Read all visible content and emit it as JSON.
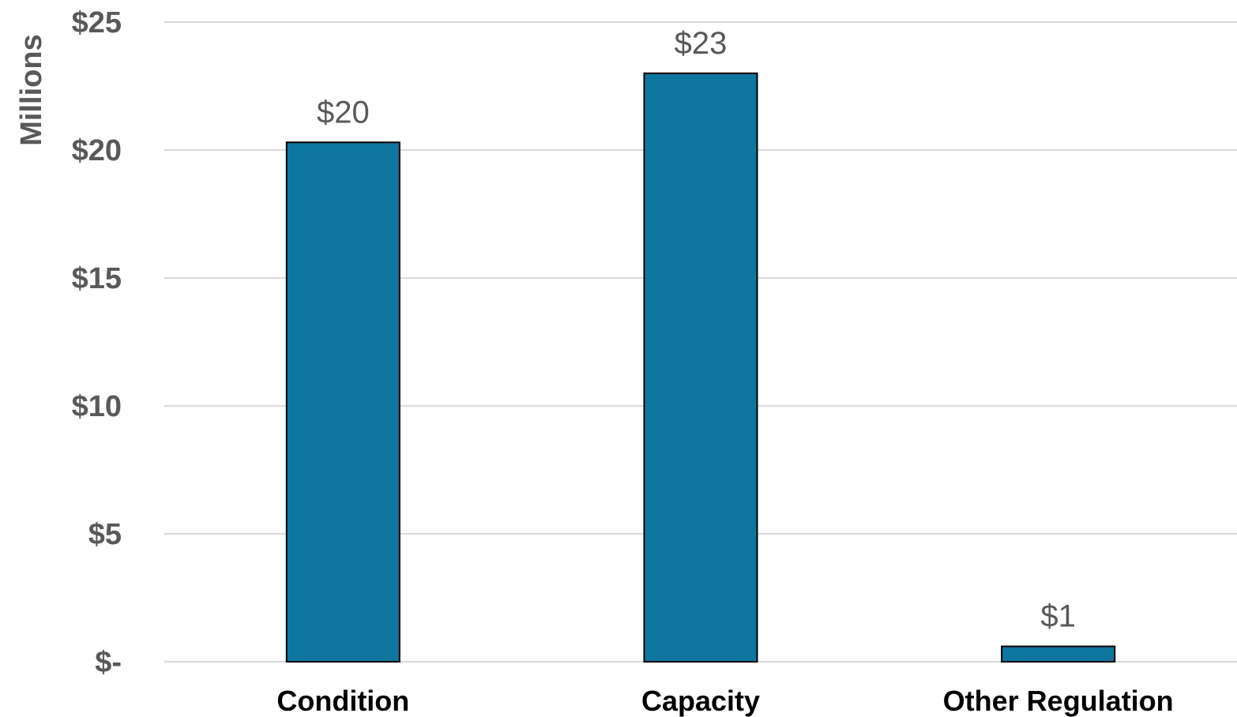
{
  "chart_data": {
    "type": "bar",
    "title": "",
    "xlabel": "",
    "ylabel": "Millions",
    "categories": [
      "Condition",
      "Capacity",
      "Other Regulation"
    ],
    "values": [
      20.3,
      23.0,
      0.6
    ],
    "data_labels": [
      "$20",
      "$23",
      "$1"
    ],
    "ylim": [
      0,
      25
    ],
    "yticks": [
      0,
      5,
      10,
      15,
      20,
      25
    ],
    "ytick_labels": [
      "$-",
      "$5",
      "$10",
      "$15",
      "$20",
      "$25"
    ],
    "grid": true,
    "legend": "none",
    "colors": {
      "bar": "#0e769f",
      "bar_outline": "#000000",
      "grid": "#d9d9d9",
      "text": "#595959"
    }
  }
}
